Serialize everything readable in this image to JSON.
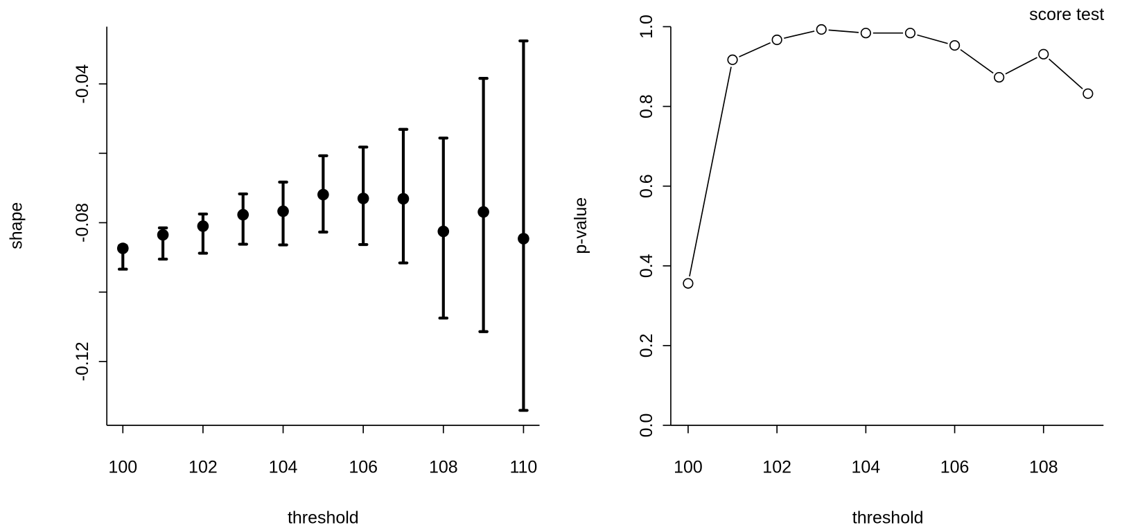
{
  "chart_data": [
    {
      "type": "scatter",
      "subtype": "point-with-error-bars",
      "title": "",
      "xlabel": "threshold",
      "ylabel": "shape",
      "xlim": [
        99.6,
        110.4
      ],
      "ylim": [
        -0.1384,
        -0.0235
      ],
      "xticks": [
        100,
        102,
        104,
        106,
        108,
        110
      ],
      "xtick_labels": [
        "100",
        "102",
        "104",
        "106",
        "108",
        "110"
      ],
      "yticks": [
        -0.12,
        -0.1,
        -0.08,
        -0.06,
        -0.04
      ],
      "ytick_labels": [
        "-0.12",
        "",
        "-0.08",
        "",
        "-0.04"
      ],
      "grid": false,
      "x": [
        100,
        101,
        102,
        103,
        104,
        105,
        106,
        107,
        108,
        109,
        110
      ],
      "values": [
        -0.0874,
        -0.0835,
        -0.081,
        -0.0777,
        -0.0767,
        -0.0719,
        -0.073,
        -0.0731,
        -0.0825,
        -0.0769,
        -0.0846
      ],
      "lower": [
        -0.0934,
        -0.0905,
        -0.0888,
        -0.0862,
        -0.0864,
        -0.0827,
        -0.0863,
        -0.0916,
        -0.1075,
        -0.1114,
        -0.1341
      ],
      "upper": [
        -0.0866,
        -0.0815,
        -0.0775,
        -0.0717,
        -0.0683,
        -0.0607,
        -0.0582,
        -0.0531,
        -0.0556,
        -0.0384,
        -0.0276
      ]
    },
    {
      "type": "line",
      "subtype": "line-with-open-circles",
      "title": "score test",
      "xlabel": "threshold",
      "ylabel": "p-value",
      "xlim": [
        99.61,
        109.35
      ],
      "ylim": [
        0.0,
        1.0
      ],
      "xticks": [
        100,
        102,
        104,
        106,
        108
      ],
      "xtick_labels": [
        "100",
        "102",
        "104",
        "106",
        "108"
      ],
      "yticks": [
        0.0,
        0.2,
        0.4,
        0.6,
        0.8,
        1.0
      ],
      "ytick_labels": [
        "0.0",
        "0.2",
        "0.4",
        "0.6",
        "0.8",
        "1.0"
      ],
      "grid": false,
      "x": [
        100,
        101,
        102,
        103,
        104,
        105,
        106,
        107,
        108,
        109
      ],
      "values": [
        0.356,
        0.917,
        0.967,
        0.993,
        0.984,
        0.984,
        0.953,
        0.873,
        0.931,
        0.832
      ]
    }
  ]
}
